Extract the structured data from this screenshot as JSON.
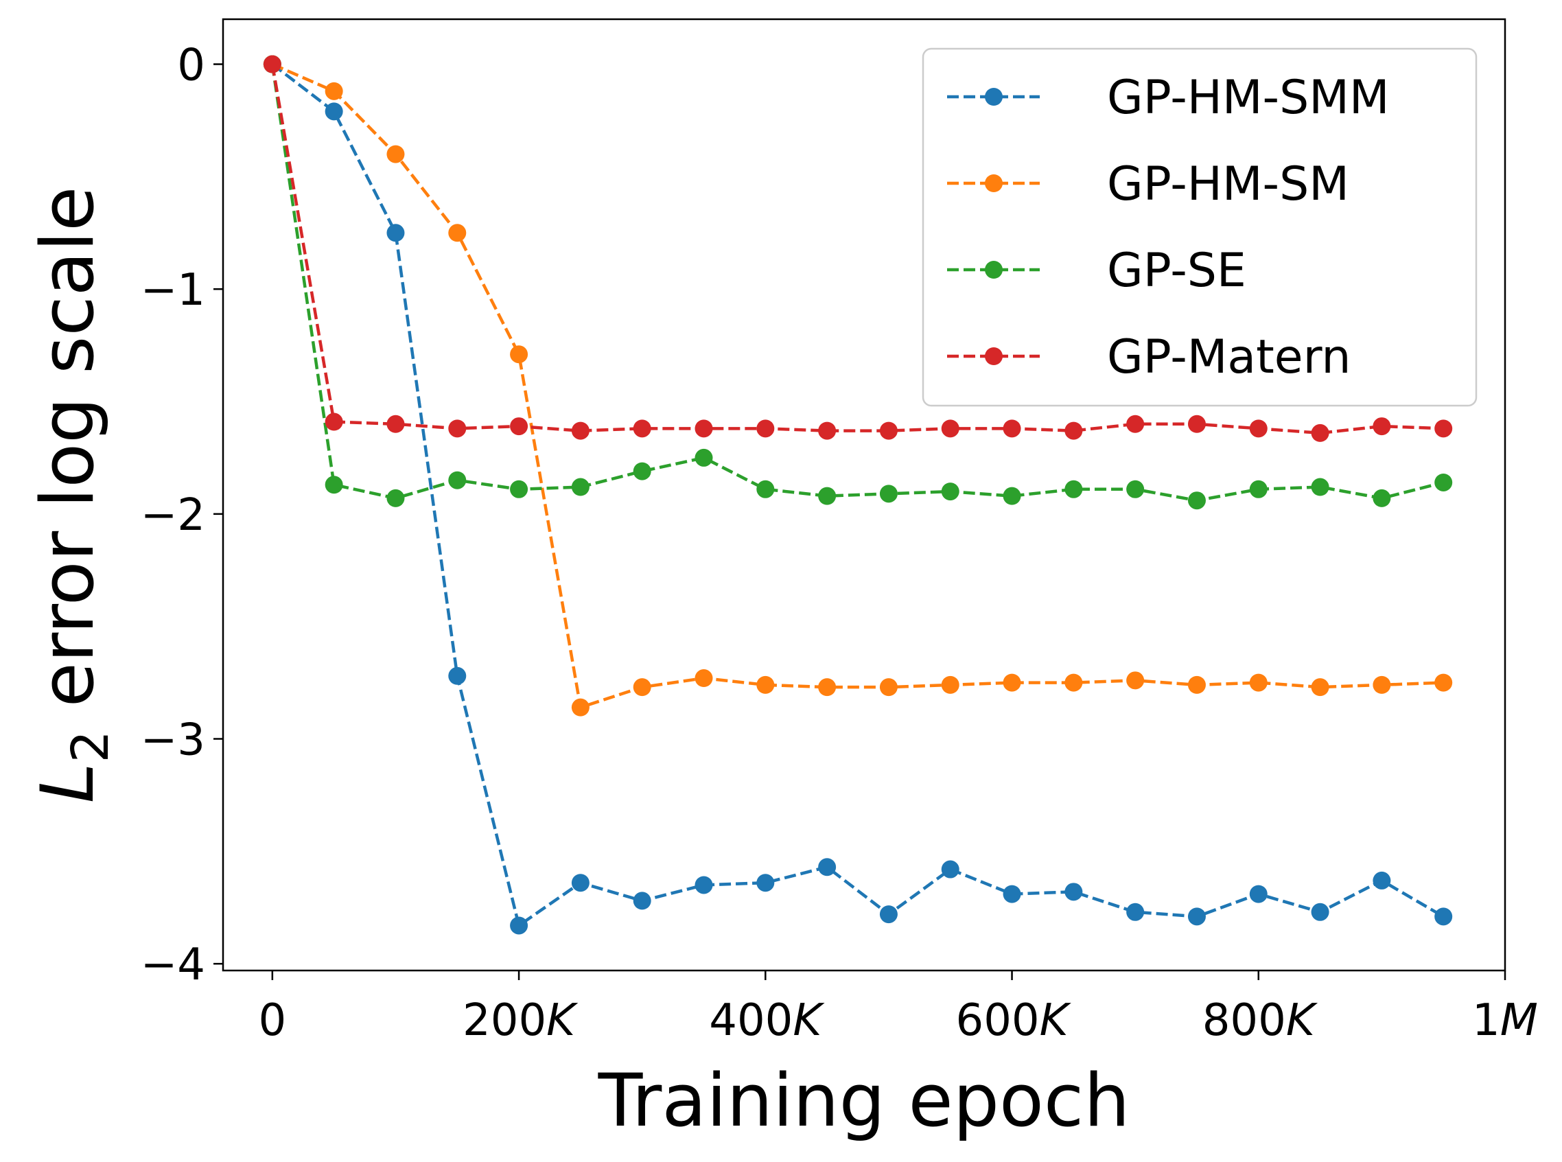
{
  "chart_data": {
    "type": "line",
    "xlabel": "Training epoch",
    "ylabel_main": "L",
    "ylabel_sub": "2",
    "ylabel_rest": " error log scale",
    "xlim": [
      -40000,
      1000000
    ],
    "ylim": [
      -4.03,
      0.2
    ],
    "xticks": [
      {
        "value": 0,
        "label": "0",
        "suffix": ""
      },
      {
        "value": 200000,
        "label": "200",
        "suffix": "K"
      },
      {
        "value": 400000,
        "label": "400",
        "suffix": "K"
      },
      {
        "value": 600000,
        "label": "600",
        "suffix": "K"
      },
      {
        "value": 800000,
        "label": "800",
        "suffix": "K"
      },
      {
        "value": 1000000,
        "label": "1",
        "suffix": "M"
      }
    ],
    "yticks": [
      {
        "value": 0,
        "label": "0"
      },
      {
        "value": -1,
        "label": "−1"
      },
      {
        "value": -2,
        "label": "−2"
      },
      {
        "value": -3,
        "label": "−3"
      },
      {
        "value": -4,
        "label": "−4"
      }
    ],
    "x": [
      0,
      50000,
      100000,
      150000,
      200000,
      250000,
      300000,
      350000,
      400000,
      450000,
      500000,
      550000,
      600000,
      650000,
      700000,
      750000,
      800000,
      850000,
      900000,
      950000
    ],
    "legend_position": "upper right",
    "series": [
      {
        "name": "GP-HM-SMM",
        "color": "#1f77b4",
        "values": [
          0,
          -0.21,
          -0.75,
          -2.72,
          -3.83,
          -3.64,
          -3.72,
          -3.65,
          -3.64,
          -3.57,
          -3.78,
          -3.58,
          -3.69,
          -3.68,
          -3.77,
          -3.79,
          -3.69,
          -3.77,
          -3.63,
          -3.79
        ]
      },
      {
        "name": "GP-HM-SM",
        "color": "#ff7f0e",
        "values": [
          0,
          -0.12,
          -0.4,
          -0.75,
          -1.29,
          -2.86,
          -2.77,
          -2.73,
          -2.76,
          -2.77,
          -2.77,
          -2.76,
          -2.75,
          -2.75,
          -2.74,
          -2.76,
          -2.75,
          -2.77,
          -2.76,
          -2.75
        ]
      },
      {
        "name": "GP-SE",
        "color": "#2ca02c",
        "values": [
          0,
          -1.87,
          -1.93,
          -1.85,
          -1.89,
          -1.88,
          -1.81,
          -1.75,
          -1.89,
          -1.92,
          -1.91,
          -1.9,
          -1.92,
          -1.89,
          -1.89,
          -1.94,
          -1.89,
          -1.88,
          -1.93,
          -1.86
        ]
      },
      {
        "name": "GP-Matern",
        "color": "#d62728",
        "values": [
          0,
          -1.59,
          -1.6,
          -1.62,
          -1.61,
          -1.63,
          -1.62,
          -1.62,
          -1.62,
          -1.63,
          -1.63,
          -1.62,
          -1.62,
          -1.63,
          -1.6,
          -1.6,
          -1.62,
          -1.64,
          -1.61,
          -1.62
        ]
      }
    ]
  }
}
